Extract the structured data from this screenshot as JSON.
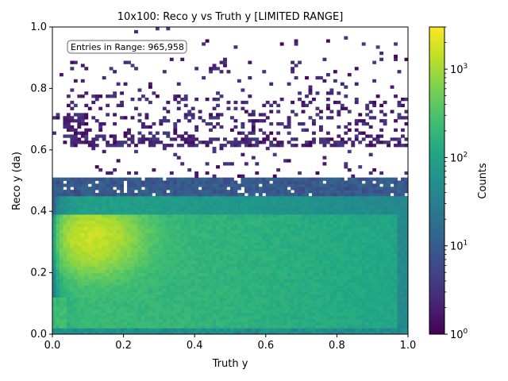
{
  "chart_data": {
    "type": "heatmap",
    "title": "10x100: Reco y vs Truth y [LIMITED RANGE]",
    "xlabel": "Truth y",
    "ylabel": "Reco y (da)",
    "xlim": [
      0,
      1
    ],
    "ylim": [
      0,
      1
    ],
    "x_ticks": [
      "0.0",
      "0.2",
      "0.4",
      "0.6",
      "0.8",
      "1.0"
    ],
    "y_ticks": [
      "0.0",
      "0.2",
      "0.4",
      "0.6",
      "0.8",
      "1.0"
    ],
    "colorbar": {
      "label": "Counts",
      "scale": "log",
      "range": [
        1,
        3000
      ],
      "colormap": "viridis",
      "ticks": [
        {
          "value": 1,
          "base": "10",
          "exp": "0"
        },
        {
          "value": 10,
          "base": "10",
          "exp": "1"
        },
        {
          "value": 100,
          "base": "10",
          "exp": "2"
        },
        {
          "value": 1000,
          "base": "10",
          "exp": "3"
        }
      ]
    },
    "annotation": "Entries in Range: 965,958",
    "bins": 100,
    "features": {
      "main_band_y": [
        0.0,
        0.39
      ],
      "peak_region_x": [
        0.05,
        0.25
      ],
      "second_band_y": [
        0.4,
        0.51
      ],
      "sparse_region_y": [
        0.51,
        0.9
      ],
      "sparse_band_y": 0.62
    }
  }
}
